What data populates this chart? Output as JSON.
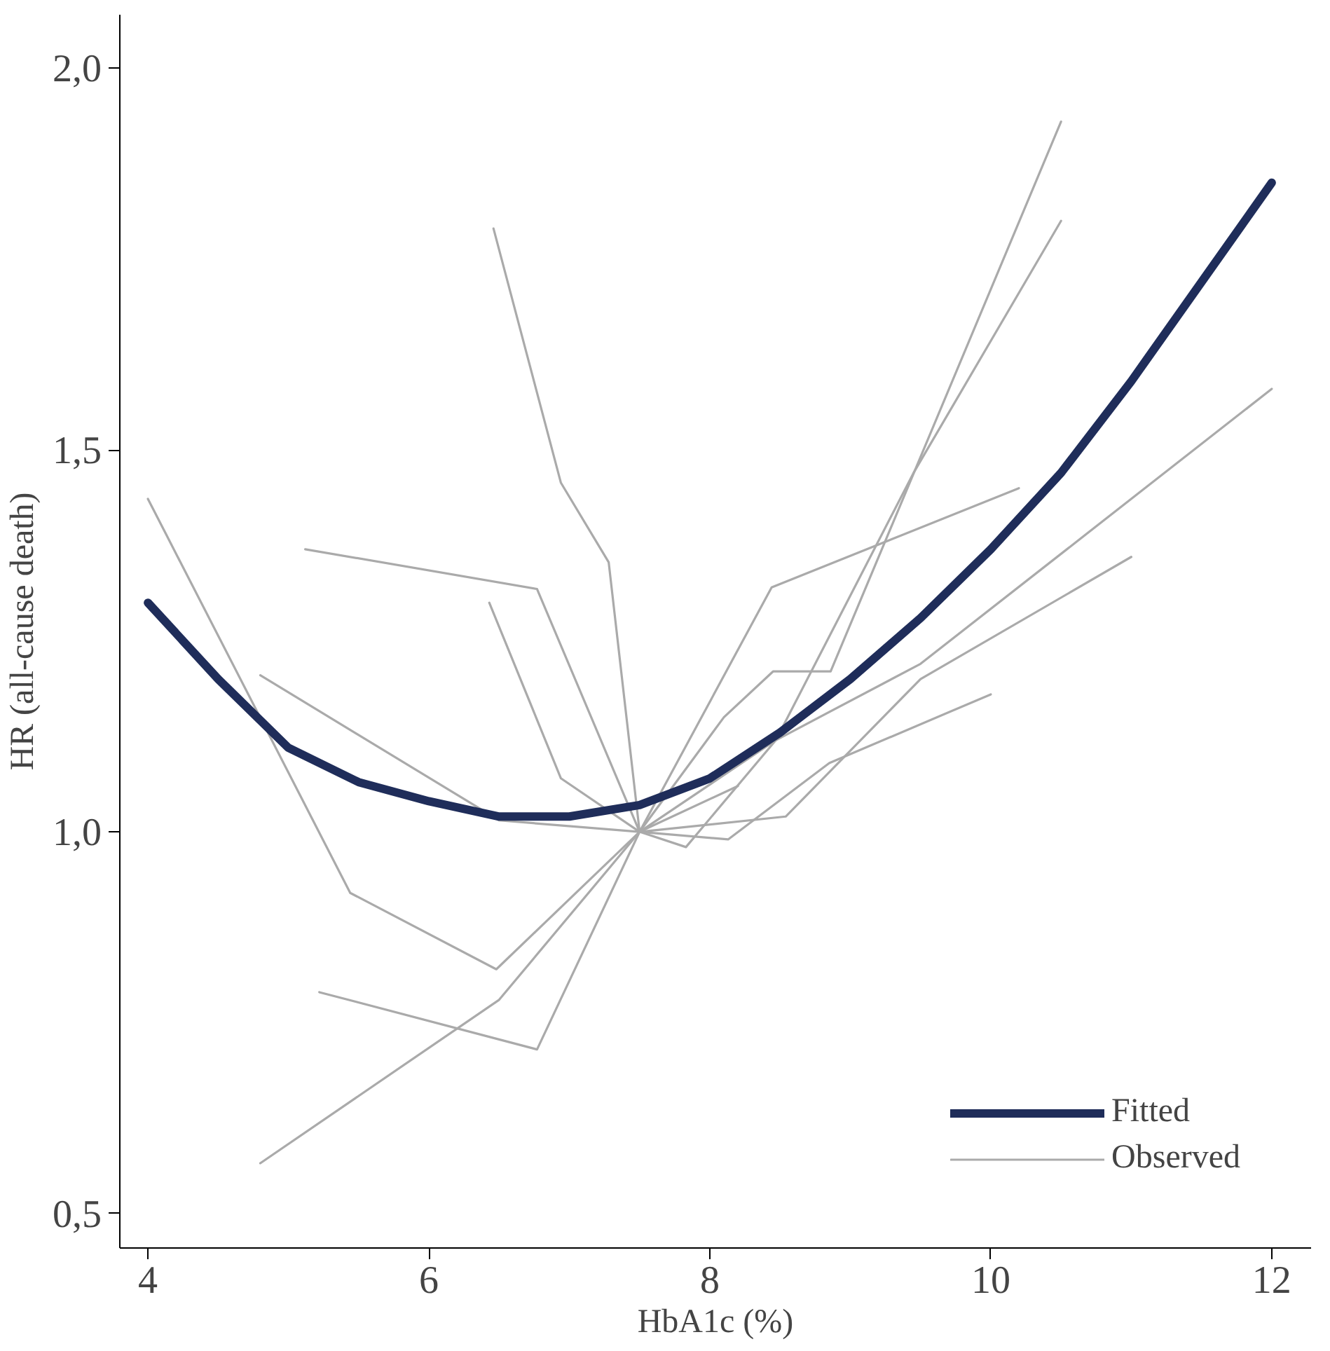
{
  "chart_data": {
    "type": "line",
    "xlabel": "HbA1c (%)",
    "ylabel": "HR (all-cause death)",
    "xlim": [
      3.8,
      12.28
    ],
    "ylim": [
      0.455,
      2.07
    ],
    "xticks": [
      4,
      6,
      8,
      10,
      12
    ],
    "yticks": [
      {
        "value": 0.5,
        "label": "0,5"
      },
      {
        "value": 1.0,
        "label": "1,0"
      },
      {
        "value": 1.5,
        "label": "1,5"
      },
      {
        "value": 2.0,
        "label": "2,0"
      }
    ],
    "grid": false,
    "legend": "bottom right",
    "marker": "none",
    "line_style": "solid",
    "series": [
      {
        "name": "Fitted",
        "color": "#1f2d5a",
        "x": [
          4,
          4.5,
          5,
          5.5,
          6,
          6.5,
          7,
          7.5,
          8,
          8.5,
          9,
          9.5,
          10,
          10.5,
          11,
          11.5,
          12
        ],
        "values": [
          1.3,
          1.2,
          1.11,
          1.065,
          1.04,
          1.02,
          1.02,
          1.035,
          1.07,
          1.13,
          1.2,
          1.28,
          1.37,
          1.47,
          1.59,
          1.72,
          1.85
        ]
      },
      {
        "name": "Observed",
        "color": "#aaaaaa",
        "x": [
          4.0,
          5.44,
          6.48,
          7.5,
          7.83,
          8.47,
          9.5,
          12.0
        ],
        "values": [
          1.436,
          0.92,
          0.82,
          1.0,
          0.98,
          1.12,
          1.22,
          1.58
        ]
      },
      {
        "color": "#aaaaaa",
        "x": [
          4.8,
          6.5,
          7.5,
          8.13,
          8.85,
          10.0
        ],
        "values": [
          1.205,
          1.015,
          1.0,
          0.99,
          1.09,
          1.18
        ]
      },
      {
        "color": "#aaaaaa",
        "x": [
          5.12,
          6.77,
          7.5,
          8.1,
          8.45,
          8.86,
          10.5
        ],
        "values": [
          1.37,
          1.318,
          1.0,
          1.15,
          1.21,
          1.21,
          1.93
        ]
      },
      {
        "color": "#aaaaaa",
        "x": [
          6.43,
          6.94,
          7.5,
          8.54,
          9.5,
          11.0
        ],
        "values": [
          1.3,
          1.07,
          1.0,
          1.02,
          1.2,
          1.36
        ]
      },
      {
        "color": "#aaaaaa",
        "x": [
          6.46,
          6.94,
          7.28,
          7.5,
          8.44,
          10.2
        ],
        "values": [
          1.79,
          1.457,
          1.353,
          1.0,
          1.32,
          1.45
        ]
      },
      {
        "color": "#aaaaaa",
        "x": [
          5.22,
          6.77,
          7.5,
          8.2
        ],
        "values": [
          0.79,
          0.715,
          1.0,
          1.06
        ]
      },
      {
        "color": "#aaaaaa",
        "x": [
          4.8,
          6.5,
          7.5,
          8.47,
          9.45,
          10.5
        ],
        "values": [
          0.566,
          0.78,
          1.0,
          1.12,
          1.47,
          1.8
        ]
      }
    ]
  }
}
